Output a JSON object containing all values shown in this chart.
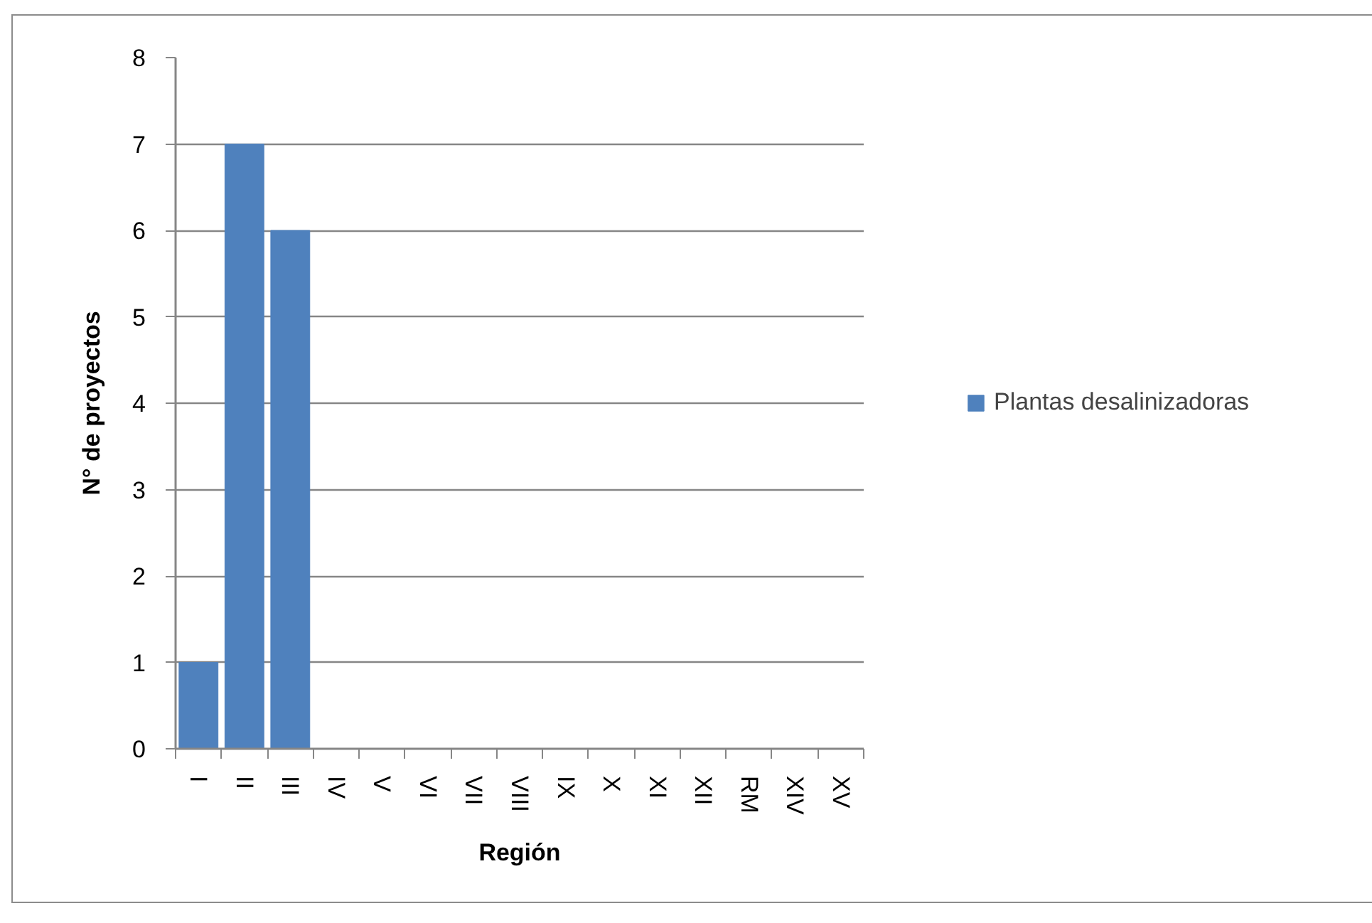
{
  "chart_data": {
    "type": "bar",
    "xlabel": "Región",
    "ylabel": "N° de proyectos",
    "categories": [
      "I",
      "II",
      "III",
      "IV",
      "V",
      "VI",
      "VII",
      "VIII",
      "IX",
      "X",
      "XI",
      "XII",
      "RM",
      "XIV",
      "XV"
    ],
    "series": [
      {
        "name": "Plantas desalinizadoras",
        "color": "#4f81bd",
        "values": [
          1,
          7,
          6,
          0,
          0,
          0,
          0,
          0,
          0,
          0,
          0,
          0,
          0,
          0,
          0
        ]
      }
    ],
    "ylim": [
      0,
      8
    ],
    "yticks": [
      0,
      1,
      2,
      3,
      4,
      5,
      6,
      7,
      8
    ],
    "grid": "y",
    "legend": "right"
  }
}
